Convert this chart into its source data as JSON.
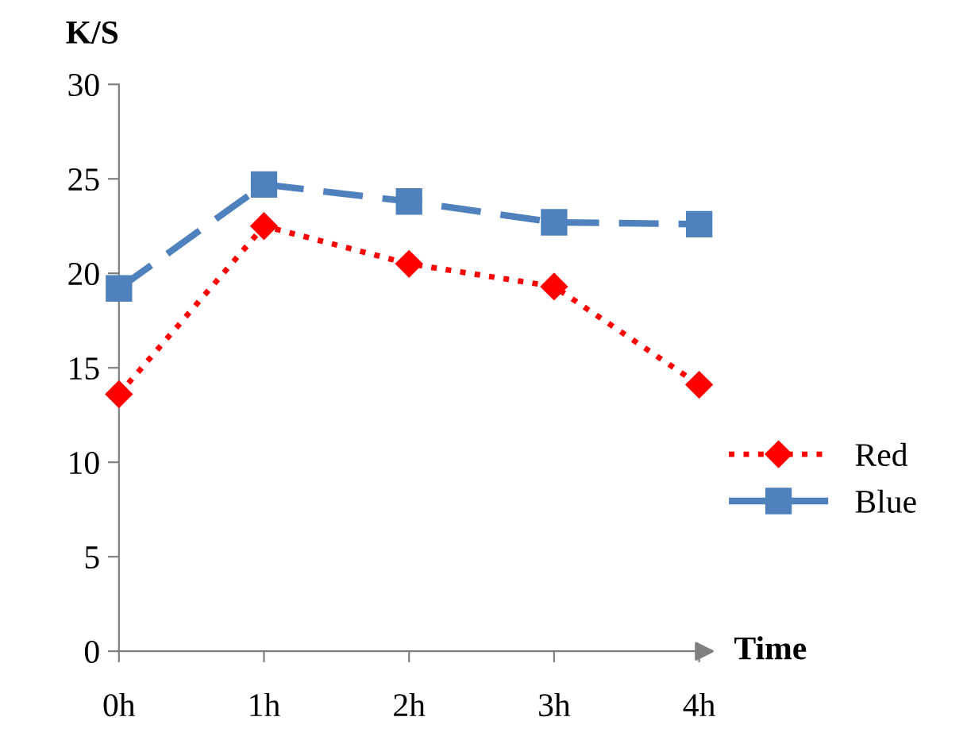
{
  "chart_data": {
    "type": "line",
    "xlabel": "Time",
    "ylabel": "K/S",
    "categories": [
      "0h",
      "1h",
      "2h",
      "3h",
      "4h"
    ],
    "series": [
      {
        "name": "Red",
        "color": "#ff0000",
        "values": [
          13.6,
          22.5,
          20.5,
          19.3,
          14.1
        ],
        "marker": "diamond",
        "line_style": "dotted"
      },
      {
        "name": "Blue",
        "color": "#4f81bd",
        "values": [
          19.2,
          24.7,
          23.8,
          22.7,
          22.6
        ],
        "marker": "square",
        "line_style": "dashed"
      }
    ],
    "ylim": [
      0,
      30
    ],
    "yticks": [
      0,
      5,
      10,
      15,
      20,
      25,
      30
    ],
    "grid": false,
    "legend": "right"
  }
}
